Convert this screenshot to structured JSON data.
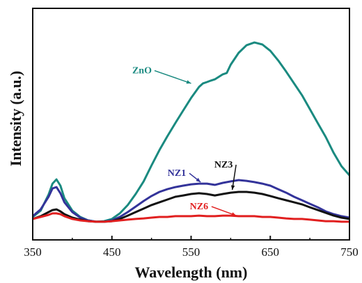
{
  "chart_data": {
    "type": "line",
    "title": "",
    "xlabel": "Wavelength (nm)",
    "ylabel": "Intensity (a.u.)",
    "xlim": [
      350,
      750
    ],
    "ylim": [
      0,
      100
    ],
    "x_ticks": [
      350,
      450,
      550,
      650,
      750
    ],
    "x_tick_labels": [
      "350",
      "450",
      "550",
      "650",
      "750"
    ],
    "grid": false,
    "legend": "none",
    "series": [
      {
        "name": "ZnO",
        "color": "#1a8a80",
        "points": [
          [
            350,
            3.4
          ],
          [
            360,
            6.8
          ],
          [
            370,
            15.5
          ],
          [
            375,
            21.4
          ],
          [
            380,
            23.7
          ],
          [
            385,
            20.3
          ],
          [
            390,
            13.5
          ],
          [
            400,
            6.8
          ],
          [
            410,
            3.4
          ],
          [
            420,
            1.5
          ],
          [
            430,
            0.8
          ],
          [
            440,
            1.1
          ],
          [
            450,
            2.3
          ],
          [
            460,
            5.3
          ],
          [
            470,
            9.8
          ],
          [
            480,
            15.8
          ],
          [
            490,
            22.6
          ],
          [
            500,
            31.2
          ],
          [
            510,
            39.5
          ],
          [
            520,
            47.0
          ],
          [
            530,
            54.1
          ],
          [
            540,
            60.9
          ],
          [
            550,
            67.7
          ],
          [
            560,
            73.7
          ],
          [
            565,
            75.6
          ],
          [
            570,
            76.3
          ],
          [
            575,
            77.1
          ],
          [
            580,
            77.8
          ],
          [
            590,
            80.5
          ],
          [
            595,
            81.2
          ],
          [
            600,
            85.7
          ],
          [
            610,
            92.1
          ],
          [
            620,
            96.2
          ],
          [
            630,
            97.7
          ],
          [
            640,
            96.6
          ],
          [
            650,
            93.2
          ],
          [
            660,
            88.0
          ],
          [
            670,
            82.0
          ],
          [
            680,
            75.6
          ],
          [
            690,
            69.2
          ],
          [
            700,
            61.7
          ],
          [
            710,
            54.1
          ],
          [
            720,
            46.6
          ],
          [
            730,
            38.0
          ],
          [
            740,
            30.8
          ],
          [
            750,
            25.9
          ]
        ]
      },
      {
        "name": "NZ1",
        "color": "#33339a",
        "points": [
          [
            350,
            3.8
          ],
          [
            360,
            7.5
          ],
          [
            370,
            14.3
          ],
          [
            375,
            18.8
          ],
          [
            380,
            19.5
          ],
          [
            385,
            16.2
          ],
          [
            390,
            11.3
          ],
          [
            400,
            6.0
          ],
          [
            410,
            3.0
          ],
          [
            420,
            1.5
          ],
          [
            430,
            0.8
          ],
          [
            440,
            0.8
          ],
          [
            450,
            1.5
          ],
          [
            460,
            3.4
          ],
          [
            470,
            6.0
          ],
          [
            480,
            9.0
          ],
          [
            490,
            12.0
          ],
          [
            500,
            14.7
          ],
          [
            510,
            16.9
          ],
          [
            520,
            18.4
          ],
          [
            530,
            19.5
          ],
          [
            540,
            20.3
          ],
          [
            550,
            21.0
          ],
          [
            560,
            21.4
          ],
          [
            570,
            21.4
          ],
          [
            580,
            20.7
          ],
          [
            590,
            21.8
          ],
          [
            600,
            22.6
          ],
          [
            610,
            23.3
          ],
          [
            620,
            22.9
          ],
          [
            630,
            22.2
          ],
          [
            640,
            21.4
          ],
          [
            650,
            20.3
          ],
          [
            660,
            18.4
          ],
          [
            670,
            16.5
          ],
          [
            680,
            14.3
          ],
          [
            690,
            12.4
          ],
          [
            700,
            10.5
          ],
          [
            710,
            8.6
          ],
          [
            720,
            6.4
          ],
          [
            730,
            4.9
          ],
          [
            740,
            3.8
          ],
          [
            750,
            3.0
          ]
        ]
      },
      {
        "name": "NZ3",
        "color": "#111111",
        "points": [
          [
            350,
            2.3
          ],
          [
            360,
            3.8
          ],
          [
            370,
            6.0
          ],
          [
            375,
            7.1
          ],
          [
            380,
            7.5
          ],
          [
            385,
            6.4
          ],
          [
            390,
            4.9
          ],
          [
            400,
            3.0
          ],
          [
            410,
            1.9
          ],
          [
            420,
            1.1
          ],
          [
            430,
            0.8
          ],
          [
            440,
            0.8
          ],
          [
            450,
            1.1
          ],
          [
            460,
            2.3
          ],
          [
            470,
            4.1
          ],
          [
            480,
            6.0
          ],
          [
            490,
            7.9
          ],
          [
            500,
            9.8
          ],
          [
            510,
            11.3
          ],
          [
            520,
            12.8
          ],
          [
            530,
            14.3
          ],
          [
            540,
            15.0
          ],
          [
            550,
            15.8
          ],
          [
            560,
            16.2
          ],
          [
            570,
            15.8
          ],
          [
            580,
            15.0
          ],
          [
            590,
            15.8
          ],
          [
            600,
            16.5
          ],
          [
            610,
            16.9
          ],
          [
            620,
            16.9
          ],
          [
            630,
            16.5
          ],
          [
            640,
            15.8
          ],
          [
            650,
            14.7
          ],
          [
            660,
            13.5
          ],
          [
            670,
            12.4
          ],
          [
            680,
            11.3
          ],
          [
            690,
            10.2
          ],
          [
            700,
            8.6
          ],
          [
            710,
            7.1
          ],
          [
            720,
            5.6
          ],
          [
            730,
            4.1
          ],
          [
            740,
            3.0
          ],
          [
            750,
            2.3
          ]
        ]
      },
      {
        "name": "NZ6",
        "color": "#e11f1f",
        "points": [
          [
            350,
            2.3
          ],
          [
            360,
            3.4
          ],
          [
            370,
            4.5
          ],
          [
            375,
            5.3
          ],
          [
            380,
            5.3
          ],
          [
            385,
            4.9
          ],
          [
            390,
            3.8
          ],
          [
            400,
            2.3
          ],
          [
            410,
            1.5
          ],
          [
            420,
            1.1
          ],
          [
            430,
            0.8
          ],
          [
            440,
            0.8
          ],
          [
            450,
            1.1
          ],
          [
            460,
            1.5
          ],
          [
            470,
            1.9
          ],
          [
            480,
            2.3
          ],
          [
            490,
            2.6
          ],
          [
            500,
            3.0
          ],
          [
            510,
            3.4
          ],
          [
            520,
            3.4
          ],
          [
            530,
            3.8
          ],
          [
            540,
            3.8
          ],
          [
            550,
            3.8
          ],
          [
            560,
            4.1
          ],
          [
            570,
            3.8
          ],
          [
            580,
            3.8
          ],
          [
            590,
            4.1
          ],
          [
            600,
            4.1
          ],
          [
            610,
            3.8
          ],
          [
            620,
            3.8
          ],
          [
            630,
            3.8
          ],
          [
            640,
            3.4
          ],
          [
            650,
            3.4
          ],
          [
            660,
            3.0
          ],
          [
            670,
            2.6
          ],
          [
            680,
            2.3
          ],
          [
            690,
            2.3
          ],
          [
            700,
            1.9
          ],
          [
            710,
            1.5
          ],
          [
            720,
            1.1
          ],
          [
            730,
            1.1
          ],
          [
            740,
            0.8
          ],
          [
            750,
            0.8
          ]
        ]
      }
    ],
    "annotations": [
      {
        "text": "ZnO",
        "color": "#1a8a80",
        "x": 488,
        "y": 81,
        "arrow_to": [
          550,
          75.6
        ]
      },
      {
        "text": "NZ1",
        "color": "#33339a",
        "x": 532,
        "y": 25.5,
        "arrow_to": [
          562,
          22.2
        ]
      },
      {
        "text": "NZ3",
        "color": "#111111",
        "x": 591,
        "y": 30.1,
        "arrow_to": [
          602,
          18.0
        ]
      },
      {
        "text": "NZ6",
        "color": "#e11f1f",
        "x": 560,
        "y": 7.5,
        "arrow_to": [
          607,
          4.1
        ]
      }
    ]
  }
}
